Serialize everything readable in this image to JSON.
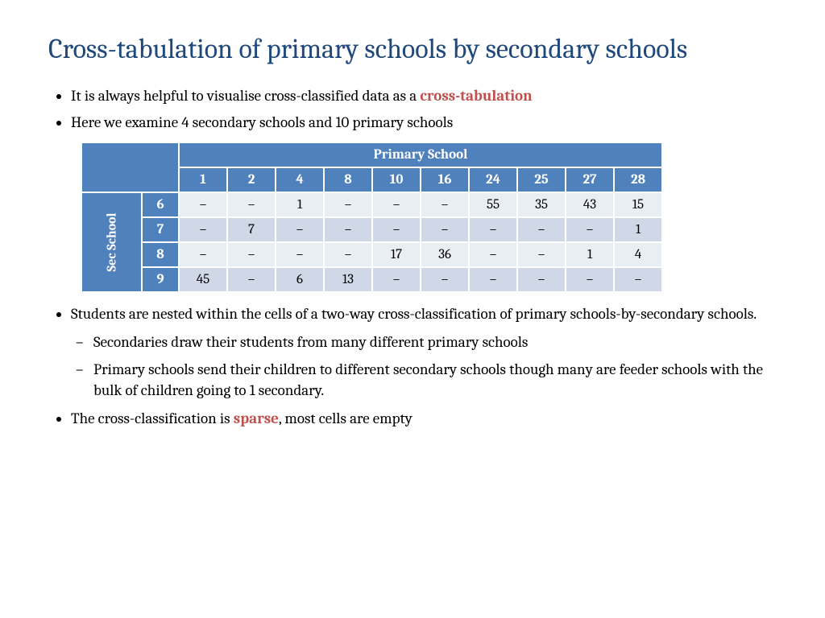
{
  "title": "Cross-tabulation of primary schools by secondary schools",
  "colors": {
    "title": "#1f497d",
    "highlight": "#c0504d",
    "header_bg": "#4f81bd",
    "subhead_bg": "#4f81bd",
    "row_even": "#d0d8e8",
    "row_odd": "#e9edf4",
    "white": "#ffffff"
  },
  "bullets": {
    "b1_pre": "It is always helpful to visualise cross-classified data as a ",
    "b1_hl": "cross-tabulation",
    "b2": "Here we examine 4 secondary schools and 10 primary schools",
    "b3": "Students are nested within the cells of a two-way cross-classification of primary schools-by-secondary schools.",
    "b3_sub1": "Secondaries draw their students from many different primary schools",
    "b3_sub2": "Primary schools send their children to different secondary schools though many are feeder schools with the bulk of children going to 1 secondary.",
    "b4_pre": "The cross-classification is ",
    "b4_hl": "sparse",
    "b4_post": ", most cells are empty"
  },
  "table": {
    "primary_label": "Primary School",
    "sec_label": "Sec School",
    "columns": [
      "1",
      "2",
      "4",
      "8",
      "10",
      "16",
      "24",
      "25",
      "27",
      "28"
    ],
    "row_labels": [
      "6",
      "7",
      "8",
      "9"
    ],
    "rows": [
      [
        "–",
        "–",
        "1",
        "–",
        "–",
        "–",
        "55",
        "35",
        "43",
        "15"
      ],
      [
        "–",
        "7",
        "–",
        "–",
        "–",
        "–",
        "–",
        "–",
        "–",
        "1"
      ],
      [
        "–",
        "–",
        "–",
        "–",
        "17",
        "36",
        "–",
        "–",
        "1",
        "4"
      ],
      [
        "45",
        "–",
        "6",
        "13",
        "–",
        "–",
        "–",
        "–",
        "–",
        "–"
      ]
    ]
  }
}
